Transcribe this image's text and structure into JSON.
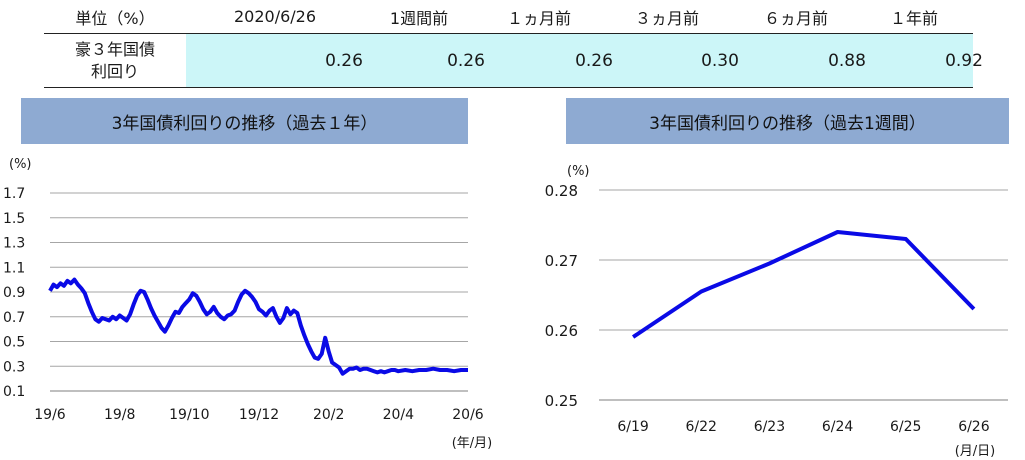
{
  "table": {
    "headers": [
      "単位（%）",
      "2020/6/26",
      "1週間前",
      "１ヵ月前",
      "３ヵ月前",
      "６ヵ月前",
      "１年前"
    ],
    "row_label_line1": "豪３年国債",
    "row_label_line2": "利回り",
    "values": [
      "0.26",
      "0.26",
      "0.26",
      "0.30",
      "0.88",
      "0.92"
    ]
  },
  "left_chart_title": "3年国債利回りの推移（過去１年）",
  "right_chart_title": "3年国債利回りの推移（過去1週間）",
  "colors": {
    "line": "#0a0ae6",
    "header_bg": "#8eaad2",
    "table_shade": "#ccf6f8",
    "grid": "#a6a6a6"
  },
  "chart_data": [
    {
      "type": "line",
      "title": "3年国債利回りの推移（過去１年）",
      "unit_label": "(%)",
      "x_unit_label": "(年/月)",
      "x_tick_labels": [
        "19/6",
        "19/8",
        "19/10",
        "19/12",
        "20/2",
        "20/4",
        "20/6"
      ],
      "y_ticks": [
        "1.7",
        "1.5",
        "1.3",
        "1.1",
        "0.9",
        "0.7",
        "0.5",
        "0.3",
        "0.1"
      ],
      "ylim": [
        0.1,
        1.7
      ],
      "grid": true,
      "x_range_months": [
        0,
        12
      ],
      "series": [
        {
          "x": [
            0.0,
            0.1,
            0.2,
            0.3,
            0.4,
            0.5,
            0.6,
            0.7,
            0.8,
            0.9,
            1.0,
            1.1,
            1.2,
            1.3,
            1.4,
            1.5,
            1.6,
            1.7,
            1.8,
            1.9,
            2.0,
            2.1,
            2.2,
            2.3,
            2.4,
            2.5,
            2.6,
            2.7,
            2.8,
            2.9,
            3.0,
            3.1,
            3.2,
            3.3,
            3.4,
            3.5,
            3.6,
            3.7,
            3.8,
            3.9,
            4.0,
            4.1,
            4.2,
            4.3,
            4.4,
            4.5,
            4.6,
            4.7,
            4.8,
            4.9,
            5.0,
            5.1,
            5.2,
            5.3,
            5.4,
            5.5,
            5.6,
            5.7,
            5.8,
            5.9,
            6.0,
            6.1,
            6.2,
            6.3,
            6.4,
            6.5,
            6.6,
            6.7,
            6.8,
            6.9,
            7.0,
            7.1,
            7.2,
            7.3,
            7.4,
            7.5,
            7.6,
            7.7,
            7.8,
            7.9,
            8.0,
            8.1,
            8.2,
            8.3,
            8.4,
            8.5,
            8.6,
            8.7,
            8.8,
            8.9,
            9.0,
            9.1,
            9.2,
            9.3,
            9.4,
            9.5,
            9.6,
            9.7,
            9.8,
            9.9,
            10.0,
            10.2,
            10.4,
            10.6,
            10.8,
            11.0,
            11.2,
            11.4,
            11.6,
            11.8,
            12.0
          ],
          "y": [
            0.91,
            0.96,
            0.94,
            0.97,
            0.95,
            0.99,
            0.97,
            1.0,
            0.96,
            0.93,
            0.89,
            0.81,
            0.74,
            0.68,
            0.66,
            0.69,
            0.68,
            0.67,
            0.7,
            0.68,
            0.71,
            0.69,
            0.67,
            0.72,
            0.8,
            0.87,
            0.91,
            0.9,
            0.84,
            0.77,
            0.71,
            0.66,
            0.61,
            0.58,
            0.63,
            0.69,
            0.74,
            0.73,
            0.78,
            0.81,
            0.84,
            0.89,
            0.87,
            0.82,
            0.76,
            0.72,
            0.74,
            0.78,
            0.73,
            0.7,
            0.68,
            0.71,
            0.72,
            0.75,
            0.82,
            0.88,
            0.91,
            0.89,
            0.86,
            0.82,
            0.76,
            0.74,
            0.71,
            0.75,
            0.77,
            0.7,
            0.65,
            0.69,
            0.77,
            0.72,
            0.75,
            0.73,
            0.63,
            0.55,
            0.48,
            0.42,
            0.37,
            0.36,
            0.4,
            0.53,
            0.42,
            0.33,
            0.31,
            0.29,
            0.24,
            0.26,
            0.28,
            0.28,
            0.29,
            0.27,
            0.28,
            0.28,
            0.27,
            0.26,
            0.25,
            0.26,
            0.25,
            0.26,
            0.27,
            0.27,
            0.26,
            0.27,
            0.26,
            0.27,
            0.27,
            0.28,
            0.27,
            0.27,
            0.26,
            0.27,
            0.27
          ]
        }
      ]
    },
    {
      "type": "line",
      "title": "3年国債利回りの推移（過去1週間）",
      "unit_label": "(%)",
      "x_unit_label": "(月/日)",
      "categories": [
        "6/19",
        "6/22",
        "6/23",
        "6/24",
        "6/25",
        "6/26"
      ],
      "y_ticks": [
        "0.28",
        "0.27",
        "0.26",
        "0.25"
      ],
      "ylim": [
        0.25,
        0.28
      ],
      "grid": true,
      "series": [
        {
          "values": [
            0.259,
            0.2655,
            0.2695,
            0.274,
            0.273,
            0.263
          ]
        }
      ]
    }
  ]
}
